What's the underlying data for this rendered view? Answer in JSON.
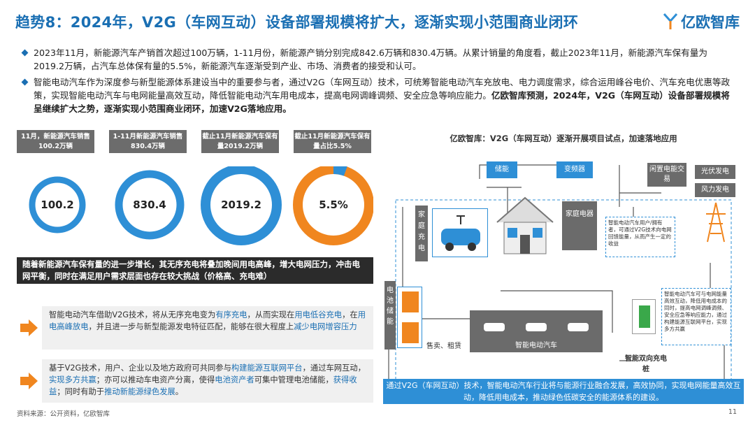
{
  "title": "趋势8：2024年，V2G（车网互动）设备部署规模将扩大，逐渐实现小范围商业闭环",
  "logo": {
    "text": "亿欧智库",
    "icon": "yiou-logo-icon"
  },
  "bullets": [
    {
      "text": "2023年11月，新能源汽车产销首次超过100万辆，1-11月份，新能源产销分别完成842.6万辆和830.4万辆。从累计销量的角度看，截止2023年11月，新能源汽车保有量为2019.2万辆，占汽车总体保有量的5.5%，新能源汽车逐渐受到产业、市场、消费者的接受和认可。"
    },
    {
      "text": "智能电动汽车作为深度参与新型能源体系建设当中的重要参与者，通过V2G（车网互动）技术，可统筹智能电动汽车充放电、电力调度需求，综合运用峰谷电价、汽车充电优惠等政策，实现智能电动汽车与电网能量高效互动，降低智能电动汽车用电成本，提高电网调峰调频、安全应急等响应能力。",
      "bold": "亿欧智库预测，2024年，V2G（车网互动）设备部署规模将呈继续扩大之势，逐渐实现小范围商业闭环，加速V2G落地应用。"
    }
  ],
  "stats": [
    {
      "label": "11月，新能源汽车销售100.2万辆",
      "value": "100.2",
      "fraction": 1.0
    },
    {
      "label": "1-11月新能源汽车销售830.4万辆",
      "value": "830.4",
      "fraction": 1.0
    },
    {
      "label": "截止11月新能源汽车保有量2019.2万辆",
      "value": "2019.2",
      "fraction": 1.0
    },
    {
      "label": "截止11月新能源汽车保有量占比5.5%",
      "value": "5.5%",
      "fraction": 0.055
    }
  ],
  "banner": "随着新能源汽车保有量的进一步增长，其无序充电将叠加晚间用电高峰，增大电网压力，冲击电网平衡，同时在满足用户需求层面也存在较大挑战（价格高、充电难）",
  "points": [
    {
      "p1": "智能电动汽车借助V2G技术，将从无序充电变为",
      "h1": "有序充电",
      "p2": "，从而实现在",
      "h2": "用电低谷充电",
      "p3": "，在",
      "h3": "用电高峰放电",
      "p4": "，并且进一步与新型能源发电特征匹配，能够在很大程度上",
      "h4": "减少电网增容压力"
    },
    {
      "p1": "基于V2G技术，用户、企业以及地方政府可共同参与",
      "h1": "构建能源互联网平台",
      "p2": "，通过车网互动，",
      "h2": "实现多方共赢",
      "p3": "；亦可以推动车电资产分离，使得",
      "h3": "电池资产者",
      "p4": "可集中管理电池储能，",
      "h4": "获得收益",
      "p5": "；同时有助于",
      "h5": "推动新能源绿色发展",
      "p6": "。"
    }
  ],
  "diagram": {
    "title": "亿欧智库：V2G（车网互动）逐渐开展项目试点，加速落地应用",
    "storage": "储能",
    "inverter": "变频器",
    "home_charging": "家庭充电",
    "home_appliance": "家庭电器",
    "idle_trade": "闲置电能交易",
    "pv": "光伏发电",
    "wind": "风力发电",
    "battery_storage": "电池储能",
    "sell_lease": "售卖、租赁",
    "smart_ev": "智能电动汽车",
    "charger": "智能双向充电桩",
    "note1": "智能电动汽车用户/拥有者，可通过V2G技术向电网回馈能量，从而产生一定的收益",
    "note2": "智能电动汽车可与电网能量高效互动，降低用电成本的同时，提高电网调峰调频、安全应急等响应能力，通过构建能源互联网平台，实现多方共赢"
  },
  "summary": "通过V2G（车网互动）技术，智能电动汽车行业将与能源行业融合发展，高效协同，实现电网能量高效互动，降低用电成本，推动绿色低碳安全的能源体系的建设。",
  "footer": "资料来源：公开资料，亿欧智库",
  "page": "11",
  "colors": {
    "blue": "#2e8fd6",
    "orange": "#f0861f",
    "title": "#1a6fb3"
  }
}
